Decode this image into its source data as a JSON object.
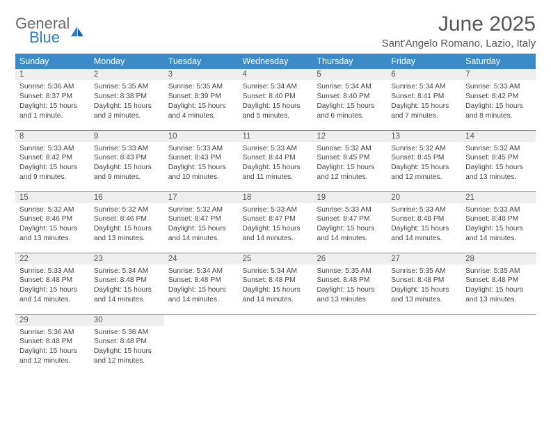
{
  "brand": {
    "general": "General",
    "blue": "Blue"
  },
  "title": "June 2025",
  "location": "Sant'Angelo Romano, Lazio, Italy",
  "colors": {
    "header_bg": "#3b8bc8",
    "header_fg": "#ffffff",
    "daynum_bg": "#eeeeee",
    "cell_border": "#6790b5",
    "text": "#444444",
    "title": "#555555",
    "logo_gray": "#6a6a6a",
    "logo_blue": "#2b7fc3"
  },
  "weekdays": [
    "Sunday",
    "Monday",
    "Tuesday",
    "Wednesday",
    "Thursday",
    "Friday",
    "Saturday"
  ],
  "days": [
    {
      "n": 1,
      "sr": "5:36 AM",
      "ss": "8:37 PM",
      "dl": "15 hours and 1 minute."
    },
    {
      "n": 2,
      "sr": "5:35 AM",
      "ss": "8:38 PM",
      "dl": "15 hours and 3 minutes."
    },
    {
      "n": 3,
      "sr": "5:35 AM",
      "ss": "8:39 PM",
      "dl": "15 hours and 4 minutes."
    },
    {
      "n": 4,
      "sr": "5:34 AM",
      "ss": "8:40 PM",
      "dl": "15 hours and 5 minutes."
    },
    {
      "n": 5,
      "sr": "5:34 AM",
      "ss": "8:40 PM",
      "dl": "15 hours and 6 minutes."
    },
    {
      "n": 6,
      "sr": "5:34 AM",
      "ss": "8:41 PM",
      "dl": "15 hours and 7 minutes."
    },
    {
      "n": 7,
      "sr": "5:33 AM",
      "ss": "8:42 PM",
      "dl": "15 hours and 8 minutes."
    },
    {
      "n": 8,
      "sr": "5:33 AM",
      "ss": "8:42 PM",
      "dl": "15 hours and 9 minutes."
    },
    {
      "n": 9,
      "sr": "5:33 AM",
      "ss": "8:43 PM",
      "dl": "15 hours and 9 minutes."
    },
    {
      "n": 10,
      "sr": "5:33 AM",
      "ss": "8:43 PM",
      "dl": "15 hours and 10 minutes."
    },
    {
      "n": 11,
      "sr": "5:33 AM",
      "ss": "8:44 PM",
      "dl": "15 hours and 11 minutes."
    },
    {
      "n": 12,
      "sr": "5:32 AM",
      "ss": "8:45 PM",
      "dl": "15 hours and 12 minutes."
    },
    {
      "n": 13,
      "sr": "5:32 AM",
      "ss": "8:45 PM",
      "dl": "15 hours and 12 minutes."
    },
    {
      "n": 14,
      "sr": "5:32 AM",
      "ss": "8:45 PM",
      "dl": "15 hours and 13 minutes."
    },
    {
      "n": 15,
      "sr": "5:32 AM",
      "ss": "8:46 PM",
      "dl": "15 hours and 13 minutes."
    },
    {
      "n": 16,
      "sr": "5:32 AM",
      "ss": "8:46 PM",
      "dl": "15 hours and 13 minutes."
    },
    {
      "n": 17,
      "sr": "5:32 AM",
      "ss": "8:47 PM",
      "dl": "15 hours and 14 minutes."
    },
    {
      "n": 18,
      "sr": "5:33 AM",
      "ss": "8:47 PM",
      "dl": "15 hours and 14 minutes."
    },
    {
      "n": 19,
      "sr": "5:33 AM",
      "ss": "8:47 PM",
      "dl": "15 hours and 14 minutes."
    },
    {
      "n": 20,
      "sr": "5:33 AM",
      "ss": "8:48 PM",
      "dl": "15 hours and 14 minutes."
    },
    {
      "n": 21,
      "sr": "5:33 AM",
      "ss": "8:48 PM",
      "dl": "15 hours and 14 minutes."
    },
    {
      "n": 22,
      "sr": "5:33 AM",
      "ss": "8:48 PM",
      "dl": "15 hours and 14 minutes."
    },
    {
      "n": 23,
      "sr": "5:34 AM",
      "ss": "8:48 PM",
      "dl": "15 hours and 14 minutes."
    },
    {
      "n": 24,
      "sr": "5:34 AM",
      "ss": "8:48 PM",
      "dl": "15 hours and 14 minutes."
    },
    {
      "n": 25,
      "sr": "5:34 AM",
      "ss": "8:48 PM",
      "dl": "15 hours and 14 minutes."
    },
    {
      "n": 26,
      "sr": "5:35 AM",
      "ss": "8:48 PM",
      "dl": "15 hours and 13 minutes."
    },
    {
      "n": 27,
      "sr": "5:35 AM",
      "ss": "8:48 PM",
      "dl": "15 hours and 13 minutes."
    },
    {
      "n": 28,
      "sr": "5:35 AM",
      "ss": "8:48 PM",
      "dl": "15 hours and 13 minutes."
    },
    {
      "n": 29,
      "sr": "5:36 AM",
      "ss": "8:48 PM",
      "dl": "15 hours and 12 minutes."
    },
    {
      "n": 30,
      "sr": "5:36 AM",
      "ss": "8:48 PM",
      "dl": "15 hours and 12 minutes."
    }
  ],
  "labels": {
    "sunrise": "Sunrise:",
    "sunset": "Sunset:",
    "daylight": "Daylight:"
  }
}
